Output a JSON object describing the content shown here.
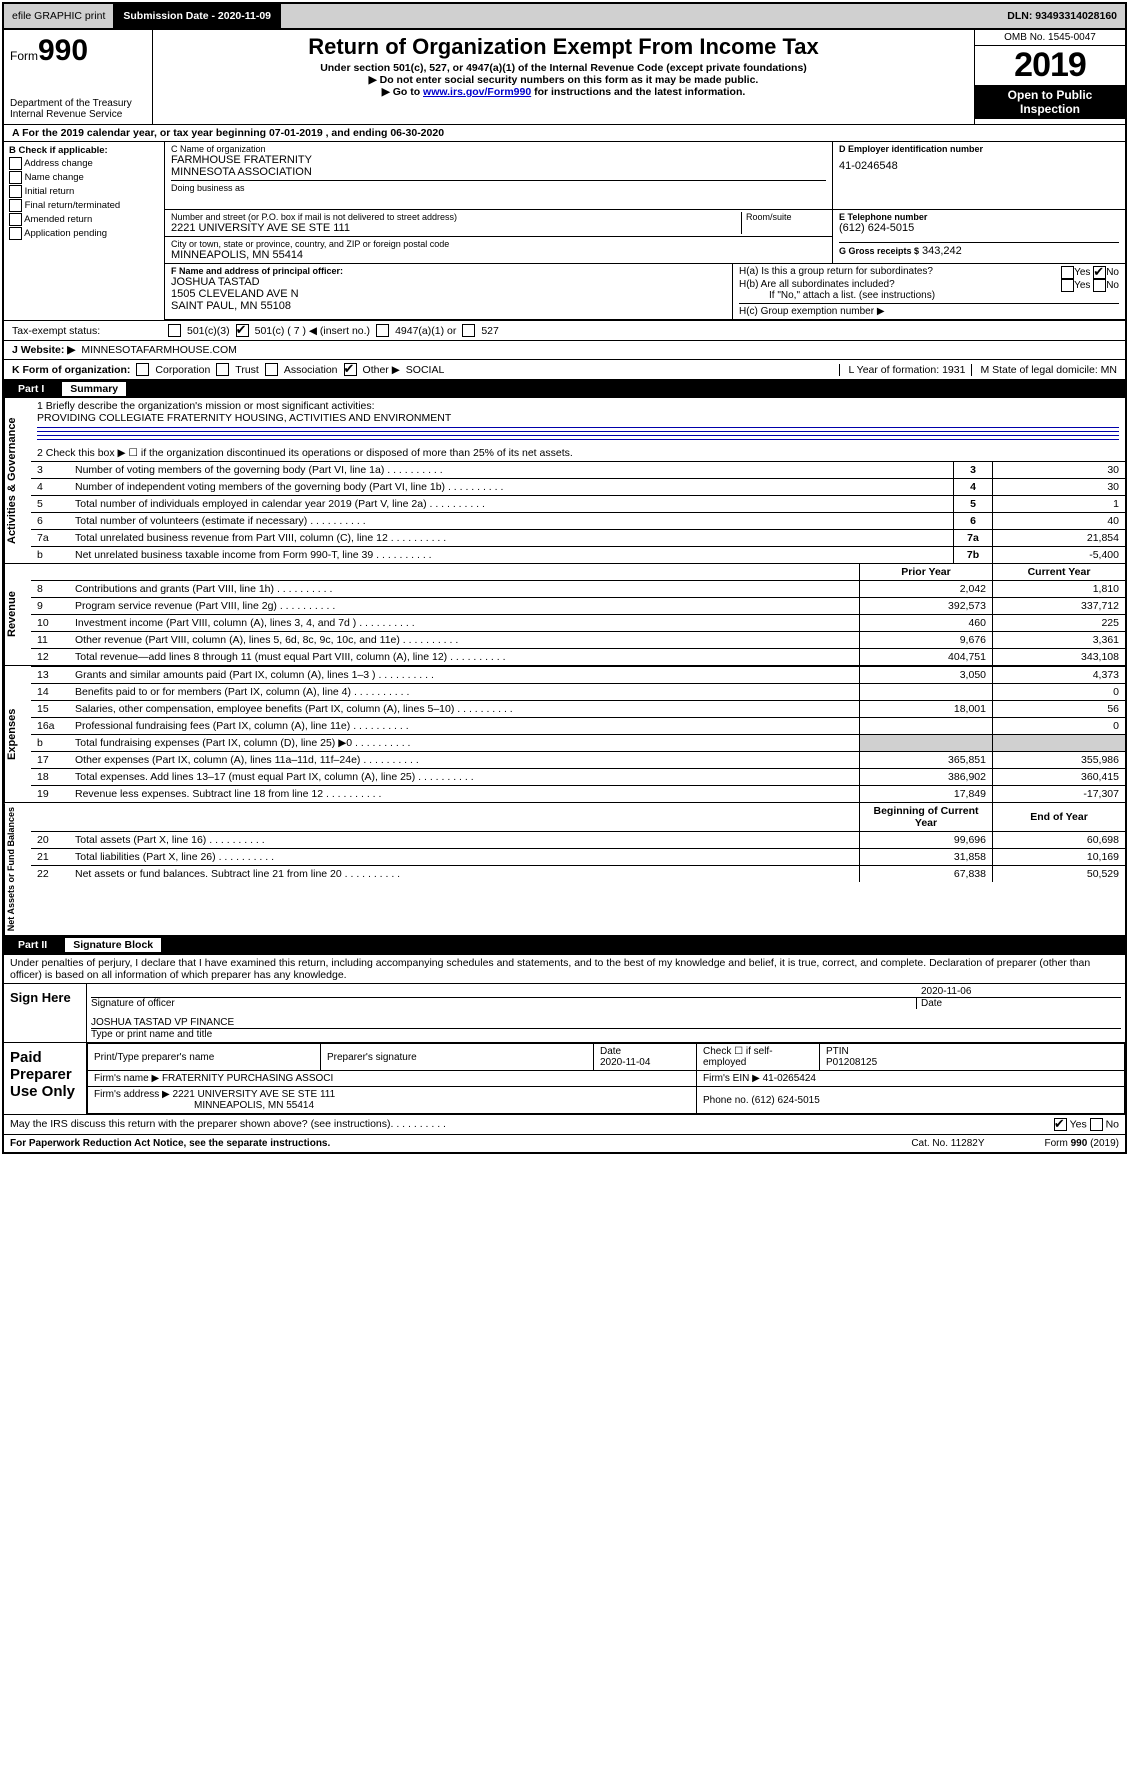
{
  "topbar": {
    "efile": "efile GRAPHIC print",
    "submission_label": "Submission Date - 2020-11-09",
    "dln": "DLN: 93493314028160"
  },
  "header": {
    "form_word": "Form",
    "form_num": "990",
    "dept1": "Department of the Treasury",
    "dept2": "Internal Revenue Service",
    "title": "Return of Organization Exempt From Income Tax",
    "sub1": "Under section 501(c), 527, or 4947(a)(1) of the Internal Revenue Code (except private foundations)",
    "sub2": "▶ Do not enter social security numbers on this form as it may be made public.",
    "sub3_prefix": "▶ Go to ",
    "sub3_link": "www.irs.gov/Form990",
    "sub3_suffix": " for instructions and the latest information.",
    "omb": "OMB No. 1545-0047",
    "year": "2019",
    "open": "Open to Public Inspection"
  },
  "taxyear": "A For the 2019 calendar year, or tax year beginning 07-01-2019     , and ending 06-30-2020",
  "colB": {
    "hdr": "B Check if applicable:",
    "items": [
      "Address change",
      "Name change",
      "Initial return",
      "Final return/terminated",
      "Amended return",
      "Application pending"
    ]
  },
  "colC": {
    "name_lbl": "C Name of organization",
    "name1": "FARMHOUSE FRATERNITY",
    "name2": "MINNESOTA ASSOCIATION",
    "dba_lbl": "Doing business as",
    "addr_lbl": "Number and street (or P.O. box if mail is not delivered to street address)",
    "suite_lbl": "Room/suite",
    "addr": "2221 UNIVERSITY AVE SE STE 111",
    "city_lbl": "City or town, state or province, country, and ZIP or foreign postal code",
    "city": "MINNEAPOLIS, MN  55414"
  },
  "colD": {
    "lbl": "D Employer identification number",
    "val": "41-0246548"
  },
  "colE": {
    "lbl": "E Telephone number",
    "val": "(612) 624-5015"
  },
  "colG": {
    "lbl": "G Gross receipts $",
    "val": "343,242"
  },
  "colF": {
    "lbl": "F  Name and address of principal officer:",
    "name": "JOSHUA TASTAD",
    "addr1": "1505 CLEVELAND AVE N",
    "addr2": "SAINT PAUL, MN  55108"
  },
  "colH": {
    "a": "H(a)  Is this a group return for subordinates?",
    "b": "H(b)  Are all subordinates included?",
    "b_note": "If \"No,\" attach a list. (see instructions)",
    "c": "H(c)  Group exemption number ▶"
  },
  "yes": "Yes",
  "no": "No",
  "status": {
    "lbl": "Tax-exempt status:",
    "c3": "501(c)(3)",
    "c": "501(c) ( 7 ) ◀ (insert no.)",
    "a1": "4947(a)(1) or",
    "s527": "527"
  },
  "website": {
    "lbl": "J   Website: ▶",
    "val": "MINNESOTAFARMHOUSE.COM"
  },
  "korg": {
    "k": "K Form of organization:",
    "opts": [
      "Corporation",
      "Trust",
      "Association",
      "Other ▶"
    ],
    "other_val": "SOCIAL",
    "l": "L Year of formation: 1931",
    "m": "M State of legal domicile: MN"
  },
  "partI": {
    "num": "Part I",
    "title": "Summary"
  },
  "summary": {
    "q1_lbl": "1  Briefly describe the organization's mission or most significant activities:",
    "q1_val": "PROVIDING COLLEGIATE FRATERNITY HOUSING, ACTIVITIES AND ENVIRONMENT",
    "q2": "2   Check this box ▶ ☐  if the organization discontinued its operations or disposed of more than 25% of its net assets.",
    "rows_a": [
      {
        "n": "3",
        "d": "Number of voting members of the governing body (Part VI, line 1a)",
        "box": "3",
        "v": "30"
      },
      {
        "n": "4",
        "d": "Number of independent voting members of the governing body (Part VI, line 1b)",
        "box": "4",
        "v": "30"
      },
      {
        "n": "5",
        "d": "Total number of individuals employed in calendar year 2019 (Part V, line 2a)",
        "box": "5",
        "v": "1"
      },
      {
        "n": "6",
        "d": "Total number of volunteers (estimate if necessary)",
        "box": "6",
        "v": "40"
      },
      {
        "n": "7a",
        "d": "Total unrelated business revenue from Part VIII, column (C), line 12",
        "box": "7a",
        "v": "21,854"
      },
      {
        "n": "b",
        "d": "Net unrelated business taxable income from Form 990-T, line 39",
        "box": "7b",
        "v": "-5,400"
      }
    ],
    "col_hdr_prior": "Prior Year",
    "col_hdr_curr": "Current Year",
    "rev_rows": [
      {
        "n": "8",
        "d": "Contributions and grants (Part VIII, line 1h)",
        "p": "2,042",
        "c": "1,810"
      },
      {
        "n": "9",
        "d": "Program service revenue (Part VIII, line 2g)",
        "p": "392,573",
        "c": "337,712"
      },
      {
        "n": "10",
        "d": "Investment income (Part VIII, column (A), lines 3, 4, and 7d )",
        "p": "460",
        "c": "225"
      },
      {
        "n": "11",
        "d": "Other revenue (Part VIII, column (A), lines 5, 6d, 8c, 9c, 10c, and 11e)",
        "p": "9,676",
        "c": "3,361"
      },
      {
        "n": "12",
        "d": "Total revenue—add lines 8 through 11 (must equal Part VIII, column (A), line 12)",
        "p": "404,751",
        "c": "343,108"
      }
    ],
    "exp_rows": [
      {
        "n": "13",
        "d": "Grants and similar amounts paid (Part IX, column (A), lines 1–3 )",
        "p": "3,050",
        "c": "4,373"
      },
      {
        "n": "14",
        "d": "Benefits paid to or for members (Part IX, column (A), line 4)",
        "p": "",
        "c": "0"
      },
      {
        "n": "15",
        "d": "Salaries, other compensation, employee benefits (Part IX, column (A), lines 5–10)",
        "p": "18,001",
        "c": "56"
      },
      {
        "n": "16a",
        "d": "Professional fundraising fees (Part IX, column (A), line 11e)",
        "p": "",
        "c": "0"
      },
      {
        "n": "b",
        "d": "Total fundraising expenses (Part IX, column (D), line 25) ▶0",
        "p": "grey",
        "c": "grey"
      },
      {
        "n": "17",
        "d": "Other expenses (Part IX, column (A), lines 11a–11d, 11f–24e)",
        "p": "365,851",
        "c": "355,986"
      },
      {
        "n": "18",
        "d": "Total expenses. Add lines 13–17 (must equal Part IX, column (A), line 25)",
        "p": "386,902",
        "c": "360,415"
      },
      {
        "n": "19",
        "d": "Revenue less expenses. Subtract line 18 from line 12",
        "p": "17,849",
        "c": "-17,307"
      }
    ],
    "col_hdr_beg": "Beginning of Current Year",
    "col_hdr_end": "End of Year",
    "na_rows": [
      {
        "n": "20",
        "d": "Total assets (Part X, line 16)",
        "p": "99,696",
        "c": "60,698"
      },
      {
        "n": "21",
        "d": "Total liabilities (Part X, line 26)",
        "p": "31,858",
        "c": "10,169"
      },
      {
        "n": "22",
        "d": "Net assets or fund balances. Subtract line 21 from line 20",
        "p": "67,838",
        "c": "50,529"
      }
    ]
  },
  "vlabels": {
    "gov": "Activities & Governance",
    "rev": "Revenue",
    "exp": "Expenses",
    "na": "Net Assets or Fund Balances"
  },
  "partII": {
    "num": "Part II",
    "title": "Signature Block"
  },
  "sig": {
    "decl": "Under penalties of perjury, I declare that I have examined this return, including accompanying schedules and statements, and to the best of my knowledge and belief, it is true, correct, and complete. Declaration of preparer (other than officer) is based on all information of which preparer has any knowledge.",
    "sign_here": "Sign Here",
    "sig_officer": "Signature of officer",
    "date": "Date",
    "date_val": "2020-11-06",
    "name_title": "JOSHUA TASTAD  VP FINANCE",
    "type_name": "Type or print name and title",
    "paid": "Paid Preparer Use Only",
    "pt_name_lbl": "Print/Type preparer's name",
    "pt_sig_lbl": "Preparer's signature",
    "pt_date_lbl": "Date",
    "pt_date": "2020-11-04",
    "pt_check": "Check ☐ if self-employed",
    "ptin_lbl": "PTIN",
    "ptin": "P01208125",
    "firm_name_lbl": "Firm's name    ▶",
    "firm_name": "FRATERNITY PURCHASING ASSOCI",
    "firm_ein_lbl": "Firm's EIN ▶",
    "firm_ein": "41-0265424",
    "firm_addr_lbl": "Firm's address ▶",
    "firm_addr1": "2221 UNIVERSITY AVE SE STE 111",
    "firm_addr2": "MINNEAPOLIS, MN  55414",
    "phone_lbl": "Phone no.",
    "phone": "(612) 624-5015",
    "discuss": "May the IRS discuss this return with the preparer shown above? (see instructions)"
  },
  "footer": {
    "pra": "For Paperwork Reduction Act Notice, see the separate instructions.",
    "cat": "Cat. No. 11282Y",
    "form": "Form 990 (2019)"
  }
}
